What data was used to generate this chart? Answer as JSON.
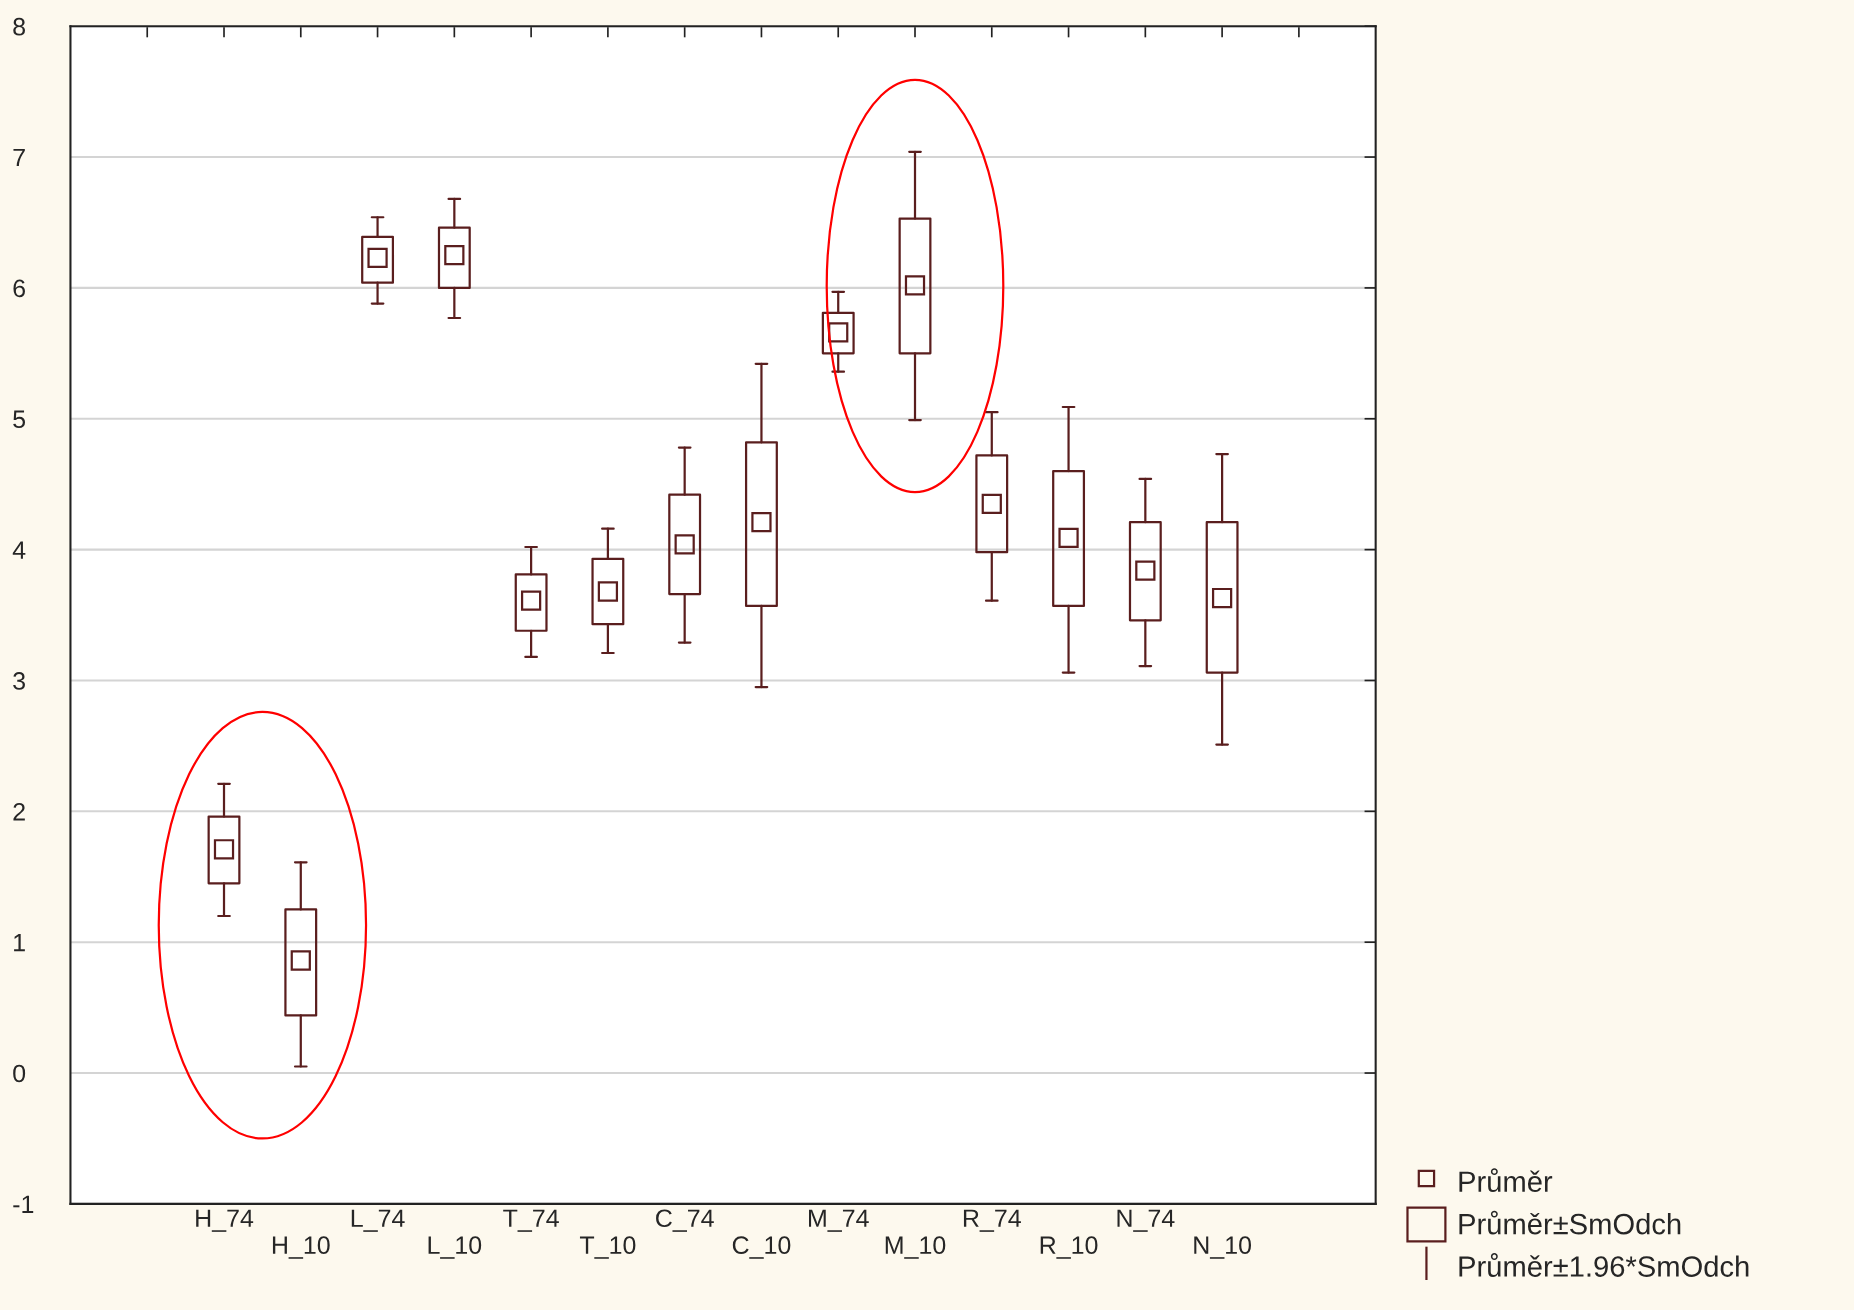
{
  "chart_data": {
    "type": "box",
    "categories": [
      null,
      "H_74",
      "H_10",
      "L_74",
      "L_10",
      "T_74",
      "T_10",
      "C_74",
      "C_10",
      "M_74",
      "M_10",
      "R_74",
      "R_10",
      "N_74",
      "N_10",
      null
    ],
    "boxes": [
      null,
      {
        "low": 1.2,
        "q1": 1.45,
        "mean": 1.71,
        "q3": 1.96,
        "high": 2.21
      },
      {
        "low": 0.05,
        "q1": 0.44,
        "mean": 0.86,
        "q3": 1.25,
        "high": 1.61
      },
      {
        "low": 5.88,
        "q1": 6.04,
        "mean": 6.23,
        "q3": 6.39,
        "high": 6.54
      },
      {
        "low": 5.77,
        "q1": 6.0,
        "mean": 6.25,
        "q3": 6.46,
        "high": 6.68
      },
      {
        "low": 3.18,
        "q1": 3.38,
        "mean": 3.61,
        "q3": 3.81,
        "high": 4.02
      },
      {
        "low": 3.21,
        "q1": 3.43,
        "mean": 3.68,
        "q3": 3.93,
        "high": 4.16
      },
      {
        "low": 3.29,
        "q1": 3.66,
        "mean": 4.04,
        "q3": 4.42,
        "high": 4.78
      },
      {
        "low": 2.95,
        "q1": 3.57,
        "mean": 4.21,
        "q3": 4.82,
        "high": 5.42
      },
      {
        "low": 5.36,
        "q1": 5.5,
        "mean": 5.66,
        "q3": 5.81,
        "high": 5.97
      },
      {
        "low": 4.99,
        "q1": 5.5,
        "mean": 6.02,
        "q3": 6.53,
        "high": 7.04
      },
      {
        "low": 3.61,
        "q1": 3.98,
        "mean": 4.35,
        "q3": 4.72,
        "high": 5.05
      },
      {
        "low": 3.06,
        "q1": 3.57,
        "mean": 4.09,
        "q3": 4.6,
        "high": 5.09
      },
      {
        "low": 3.11,
        "q1": 3.46,
        "mean": 3.84,
        "q3": 4.21,
        "high": 4.54
      },
      {
        "low": 2.51,
        "q1": 3.06,
        "mean": 3.63,
        "q3": 4.21,
        "high": 4.73
      },
      null
    ],
    "color": "#5a1e1e",
    "annotations": [
      "Průměr",
      "Průměr±SmOdch",
      "Průměr±1.96*SmOdch"
    ],
    "ylim": [
      -1,
      8
    ],
    "yticks": [
      -1,
      0,
      1,
      2,
      3,
      4,
      5,
      6,
      7,
      8
    ],
    "grid": "y",
    "marker": "square"
  }
}
